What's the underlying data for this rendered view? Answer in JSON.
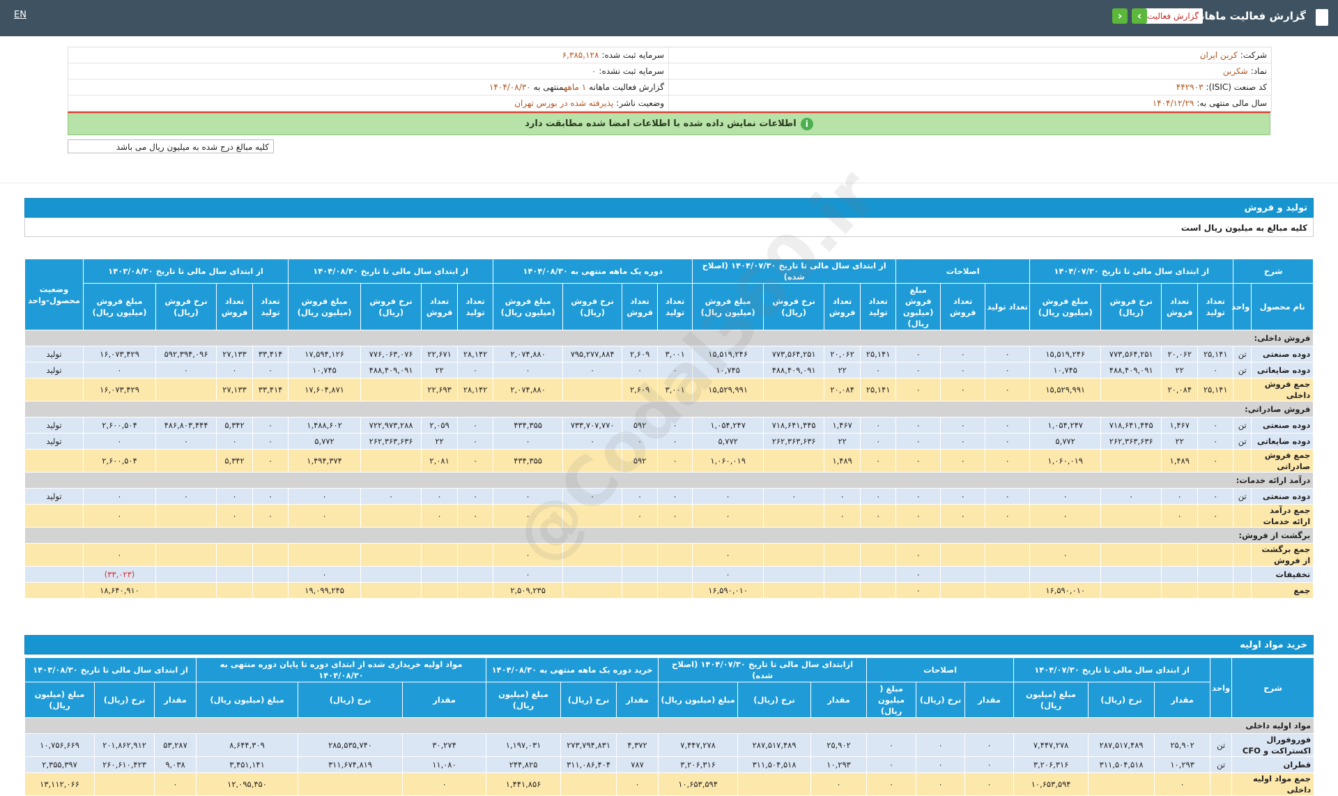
{
  "header": {
    "title": "گزارش فعالیت ماهانه",
    "report_select": "گزارش فعالیت",
    "lang": "EN"
  },
  "info": {
    "rows": [
      {
        "label": "شرکت:",
        "value": "کربن ایران",
        "label2": "سرمایه ثبت شده:",
        "value2": "۶,۳۸۵,۱۲۸"
      },
      {
        "label": "نماد:",
        "value": "شکربن",
        "label2": "سرمایه ثبت نشده:",
        "value2": "۰"
      },
      {
        "label": "کد صنعت (ISIC):",
        "value": "۴۴۲۹۰۳",
        "label2": "گزارش فعالیت ماهانه",
        "value2": "۱ ماهه",
        "mid2": "منتهی به",
        "value3": "۱۴۰۴/۰۸/۳۰"
      },
      {
        "label": "سال مالی منتهی به:",
        "value": "۱۴۰۴/۱۲/۲۹",
        "label2": "وضعیت ناشر:",
        "value2": "پذیرفته شده در بورس تهران"
      }
    ]
  },
  "notice": "اطلاعات نمایش داده شده با اطلاعات امضا شده مطابقت دارد",
  "unit_note": "کلیه مبالغ درج شده به میلیون ریال می باشد",
  "watermark": "@Codal360.ir",
  "section1": {
    "title": "تولید و فروش",
    "note": "کلیه مبالغ به میلیون ریال است",
    "head": {
      "desc": "شرح",
      "name": "نام محصول",
      "unit": "واحد",
      "status": "وضعیت محصول-واحد"
    },
    "groups": [
      {
        "title": "از ابتدای سال مالی تا تاریخ ۱۴۰۴/۰۷/۳۰",
        "cols": [
          "تعداد تولید",
          "تعداد فروش",
          "نرخ فروش (ریال)",
          "مبلغ فروش (میلیون ریال)"
        ]
      },
      {
        "title": "اصلاحات",
        "cols": [
          "تعداد تولید",
          "تعداد فروش",
          "مبلغ فروش (میلیون ریال)"
        ]
      },
      {
        "title": "از ابتدای سال مالی تا تاریخ ۱۴۰۴/۰۷/۳۰ (اصلاح شده)",
        "cols": [
          "تعداد تولید",
          "تعداد فروش",
          "نرخ فروش (ریال)",
          "مبلغ فروش (میلیون ریال)"
        ]
      },
      {
        "title": "دوره یک ماهه منتهی به ۱۴۰۴/۰۸/۳۰",
        "cols": [
          "تعداد تولید",
          "تعداد فروش",
          "نرخ فروش (ریال)",
          "مبلغ فروش (میلیون ریال)"
        ]
      },
      {
        "title": "از ابتدای سال مالی تا تاریخ ۱۴۰۴/۰۸/۳۰",
        "cols": [
          "تعداد تولید",
          "تعداد فروش",
          "نرخ فروش (ریال)",
          "مبلغ فروش (میلیون ریال)"
        ]
      },
      {
        "title": "از ابتدای سال مالی تا تاریخ ۱۴۰۳/۰۸/۳۰",
        "cols": [
          "تعداد تولید",
          "تعداد فروش",
          "نرخ فروش (ریال)",
          "مبلغ فروش (میلیون ریال)"
        ]
      }
    ],
    "rows": [
      {
        "label": "فروش داخلی:"
      },
      {
        "kind": "item",
        "cells": [
          "دوده صنعتی",
          "تن",
          "۲۵,۱۴۱",
          "۲۰,۰۶۲",
          "۷۷۳,۵۶۴,۲۵۱",
          "۱۵,۵۱۹,۲۴۶",
          "۰",
          "۰",
          "۰",
          "۲۵,۱۴۱",
          "۲۰,۰۶۲",
          "۷۷۳,۵۶۴,۲۵۱",
          "۱۵,۵۱۹,۲۴۶",
          "۳,۰۰۱",
          "۲,۶۰۹",
          "۷۹۵,۲۷۷,۸۸۴",
          "۲,۰۷۴,۸۸۰",
          "۲۸,۱۴۲",
          "۲۲,۶۷۱",
          "۷۷۶,۰۶۳,۰۷۶",
          "۱۷,۵۹۴,۱۲۶",
          "۳۳,۴۱۴",
          "۲۷,۱۳۳",
          "۵۹۲,۳۹۴,۰۹۶",
          "۱۶,۰۷۳,۴۲۹",
          "تولید"
        ]
      },
      {
        "kind": "item",
        "cells": [
          "دوده ضایعاتی",
          "تن",
          "۰",
          "۲۲",
          "۴۸۸,۴۰۹,۰۹۱",
          "۱۰,۷۴۵",
          "۰",
          "۰",
          "۰",
          "۰",
          "۲۲",
          "۴۸۸,۴۰۹,۰۹۱",
          "۱۰,۷۴۵",
          "۰",
          "۰",
          "۰",
          "۰",
          "۰",
          "۲۲",
          "۴۸۸,۴۰۹,۰۹۱",
          "۱۰,۷۴۵",
          "۰",
          "۰",
          "۰",
          "۰",
          "تولید"
        ]
      },
      {
        "kind": "total",
        "cells": [
          "جمع فروش داخلی",
          null,
          "۲۵,۱۴۱",
          "۲۰,۰۸۴",
          null,
          "۱۵,۵۲۹,۹۹۱",
          "۰",
          "۰",
          "۰",
          "۲۵,۱۴۱",
          "۲۰,۰۸۴",
          null,
          "۱۵,۵۲۹,۹۹۱",
          "۳,۰۰۱",
          "۲,۶۰۹",
          null,
          "۲,۰۷۴,۸۸۰",
          "۲۸,۱۴۲",
          "۲۲,۶۹۳",
          null,
          "۱۷,۶۰۴,۸۷۱",
          "۳۳,۴۱۴",
          "۲۷,۱۳۳",
          null,
          "۱۶,۰۷۳,۴۲۹",
          null
        ]
      },
      {
        "label": "فروش صادراتی:"
      },
      {
        "kind": "item",
        "cells": [
          "دوده صنعتی",
          "تن",
          "۰",
          "۱,۴۶۷",
          "۷۱۸,۶۴۱,۴۴۵",
          "۱,۰۵۴,۲۴۷",
          "۰",
          "۰",
          "۰",
          "۰",
          "۱,۴۶۷",
          "۷۱۸,۶۴۱,۴۴۵",
          "۱,۰۵۴,۲۴۷",
          "۰",
          "۵۹۲",
          "۷۳۳,۷۰۷,۷۷۰",
          "۴۳۴,۳۵۵",
          "۰",
          "۲,۰۵۹",
          "۷۲۲,۹۷۳,۲۸۸",
          "۱,۴۸۸,۶۰۲",
          "۰",
          "۵,۳۴۲",
          "۴۸۶,۸۰۳,۴۴۴",
          "۲,۶۰۰,۵۰۴",
          "تولید"
        ]
      },
      {
        "kind": "item",
        "cells": [
          "دوده ضایعاتی",
          "تن",
          "۰",
          "۲۲",
          "۲۶۲,۳۶۳,۶۳۶",
          "۵,۷۷۲",
          "۰",
          "۰",
          "۰",
          "۰",
          "۲۲",
          "۲۶۲,۳۶۳,۶۳۶",
          "۵,۷۷۲",
          "۰",
          "۰",
          "۰",
          "۰",
          "۰",
          "۲۲",
          "۲۶۲,۳۶۳,۶۳۶",
          "۵,۷۷۲",
          "۰",
          "۰",
          "۰",
          "۰",
          "تولید"
        ]
      },
      {
        "kind": "total",
        "cells": [
          "جمع فروش صادراتی",
          null,
          "۰",
          "۱,۴۸۹",
          null,
          "۱,۰۶۰,۰۱۹",
          "۰",
          "۰",
          "۰",
          "۰",
          "۱,۴۸۹",
          null,
          "۱,۰۶۰,۰۱۹",
          "۰",
          "۵۹۲",
          null,
          "۴۳۴,۳۵۵",
          "۰",
          "۲,۰۸۱",
          null,
          "۱,۴۹۴,۳۷۴",
          "۰",
          "۵,۳۴۲",
          null,
          "۲,۶۰۰,۵۰۴",
          null
        ]
      },
      {
        "label": "درآمد ارائه خدمات:"
      },
      {
        "kind": "item",
        "cells": [
          "دوده صنعتی",
          "تن",
          "۰",
          "۰",
          "۰",
          "۰",
          "۰",
          "۰",
          "۰",
          "۰",
          "۰",
          "۰",
          "۰",
          "۰",
          "۰",
          "۰",
          "۰",
          "۰",
          "۰",
          "۰",
          "۰",
          "۰",
          "۰",
          "۰",
          "۰",
          "تولید"
        ]
      },
      {
        "kind": "total",
        "cells": [
          "جمع درآمد ارائه خدمات",
          null,
          "۰",
          "۰",
          null,
          "۰",
          "۰",
          "۰",
          "۰",
          "۰",
          "۰",
          null,
          "۰",
          "۰",
          "۰",
          null,
          "۰",
          "۰",
          "۰",
          null,
          "۰",
          "۰",
          "۰",
          null,
          "۰",
          null
        ]
      },
      {
        "label": "برگشت از فروش:"
      },
      {
        "kind": "total",
        "cells": [
          "جمع برگشت از فروش",
          null,
          null,
          null,
          null,
          "۰",
          null,
          null,
          "۰",
          null,
          null,
          null,
          "۰",
          null,
          null,
          null,
          "۰",
          null,
          null,
          null,
          null,
          null,
          null,
          null,
          "۰",
          null
        ]
      },
      {
        "kind": "item",
        "cells": [
          "تخفیفات",
          null,
          null,
          null,
          null,
          null,
          null,
          null,
          "۰",
          null,
          null,
          null,
          "۰",
          null,
          null,
          null,
          "۰",
          null,
          null,
          null,
          "۰",
          null,
          null,
          null,
          "(۳۳,۰۲۳)",
          null
        ]
      },
      {
        "kind": "total",
        "cells": [
          "جمع",
          null,
          null,
          null,
          null,
          "۱۶,۵۹۰,۰۱۰",
          null,
          null,
          "۰",
          null,
          null,
          null,
          "۱۶,۵۹۰,۰۱۰",
          null,
          null,
          null,
          "۲,۵۰۹,۲۳۵",
          null,
          null,
          null,
          "۱۹,۰۹۹,۲۴۵",
          null,
          null,
          null,
          "۱۸,۶۴۰,۹۱۰",
          null
        ]
      }
    ]
  },
  "section2": {
    "title": "خرید مواد اولیه",
    "head": {
      "desc": "شرح",
      "unit": "واحد"
    },
    "groups": [
      {
        "title": "از ابتدای سال مالی تا تاریخ ۱۴۰۴/۰۷/۳۰",
        "cols": [
          "مقدار",
          "نرخ (ریال)",
          "مبلغ (میلیون ریال)"
        ]
      },
      {
        "title": "اصلاحات",
        "cols": [
          "مقدار",
          "نرخ (ریال)",
          "مبلغ ( میلیون ریال)"
        ]
      },
      {
        "title": "ازابتدای سال مالی تا تاریخ ۱۴۰۴/۰۷/۳۰ (اصلاح شده)",
        "cols": [
          "مقدار",
          "نرخ (ریال)",
          "مبلغ (میلیون ریال)"
        ]
      },
      {
        "title": "خرید دوره یک ماهه منتهی به ۱۴۰۴/۰۸/۳۰",
        "cols": [
          "مقدار",
          "نرخ (ریال)",
          "مبلغ (میلیون ریال)"
        ]
      },
      {
        "title": "مواد اولیه خریداری شده از ابتدای دوره تا پایان دوره منتهی به ۱۴۰۴/۰۸/۳۰",
        "cols": [
          "مقدار",
          "نرخ (ریال)",
          "مبلغ (میلیون ریال)"
        ]
      },
      {
        "title": "از ابتدای سال مالی تا تاریخ ۱۴۰۳/۰۸/۳۰",
        "cols": [
          "مقدار",
          "نرخ (ریال)",
          "مبلغ (میلیون ریال)"
        ]
      }
    ],
    "rows": [
      {
        "label": "مواد اولیه داخلی"
      },
      {
        "kind": "item",
        "cells": [
          "فوروفورال اکستراکت و CFO",
          "تن",
          "۲۵,۹۰۲",
          "۲۸۷,۵۱۷,۴۸۹",
          "۷,۴۴۷,۲۷۸",
          "۰",
          "۰",
          "۰",
          "۲۵,۹۰۲",
          "۲۸۷,۵۱۷,۴۸۹",
          "۷,۴۴۷,۲۷۸",
          "۴,۳۷۲",
          "۲۷۳,۷۹۴,۸۳۱",
          "۱,۱۹۷,۰۳۱",
          "۳۰,۲۷۴",
          "۲۸۵,۵۳۵,۷۴۰",
          "۸,۶۴۴,۳۰۹",
          "۵۳,۲۸۷",
          "۲۰۱,۸۶۲,۹۱۲",
          "۱۰,۷۵۶,۶۶۹"
        ]
      },
      {
        "kind": "item",
        "cells": [
          "قطران",
          "تن",
          "۱۰,۲۹۳",
          "۳۱۱,۵۰۴,۵۱۸",
          "۳,۲۰۶,۳۱۶",
          "۰",
          "۰",
          "۰",
          "۱۰,۲۹۳",
          "۳۱۱,۵۰۴,۵۱۸",
          "۳,۲۰۶,۳۱۶",
          "۷۸۷",
          "۳۱۱,۰۸۶,۴۰۴",
          "۲۴۴,۸۲۵",
          "۱۱,۰۸۰",
          "۳۱۱,۶۷۴,۸۱۹",
          "۳,۴۵۱,۱۴۱",
          "۹,۰۳۸",
          "۲۶۰,۶۱۰,۴۲۳",
          "۲,۳۵۵,۳۹۷"
        ]
      },
      {
        "kind": "total",
        "cells": [
          "جمع مواد اولیه داخلی",
          null,
          "۰",
          null,
          "۱۰,۶۵۳,۵۹۴",
          "۰",
          "۰",
          "۰",
          "۰",
          null,
          "۱۰,۶۵۳,۵۹۴",
          "۰",
          null,
          "۱,۴۴۱,۸۵۶",
          "۰",
          null,
          "۱۲,۰۹۵,۴۵۰",
          "۰",
          null,
          "۱۳,۱۱۲,۰۶۶"
        ]
      }
    ]
  }
}
